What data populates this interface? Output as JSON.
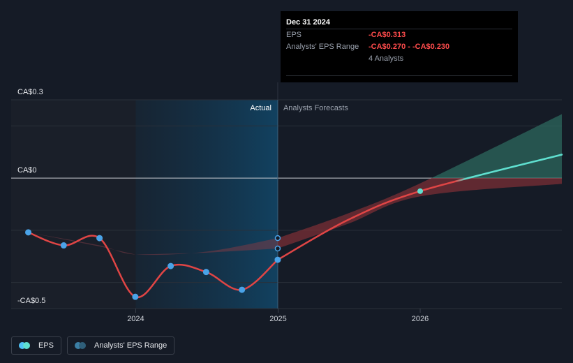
{
  "chart_data": {
    "type": "line",
    "y_unit_prefix": "CA$",
    "ylim": [
      -0.5,
      0.3
    ],
    "y_tick_labels": [
      {
        "value": 0.3,
        "label": "CA$0.3"
      },
      {
        "value": 0,
        "label": "CA$0"
      },
      {
        "value": -0.5,
        "label": "-CA$0.5"
      }
    ],
    "y_gridlines": [
      0.3,
      0.2,
      0,
      -0.2,
      -0.4,
      -0.5
    ],
    "xlim": [
      "2023-02-15",
      "2026-12-31"
    ],
    "x_tick_labels": [
      {
        "value": "2024-01-01",
        "label": "2024"
      },
      {
        "value": "2025-01-01",
        "label": "2025"
      },
      {
        "value": "2026-01-01",
        "label": "2026"
      }
    ],
    "regions": {
      "actual_label": "Actual",
      "forecast_label": "Analysts Forecasts",
      "highlight_start": "2024-01-01",
      "boundary": "2024-12-31"
    },
    "series": [
      {
        "name": "EPS",
        "color": "#e04545",
        "points": [
          {
            "x": "2023-03-31",
            "y": -0.208
          },
          {
            "x": "2023-06-30",
            "y": -0.258
          },
          {
            "x": "2023-09-30",
            "y": -0.23
          },
          {
            "x": "2023-12-31",
            "y": -0.455
          },
          {
            "x": "2024-03-31",
            "y": -0.337
          },
          {
            "x": "2024-06-30",
            "y": -0.36
          },
          {
            "x": "2024-09-30",
            "y": -0.428
          },
          {
            "x": "2024-12-31",
            "y": -0.313
          }
        ]
      },
      {
        "name": "EPS forecast",
        "color_start": "#e04545",
        "color_end": "#5fe0d0",
        "points": [
          {
            "x": "2024-12-31",
            "y": -0.313
          },
          {
            "x": "2025-06-30",
            "y": -0.16
          },
          {
            "x": "2026-01-01",
            "y": -0.05
          },
          {
            "x": "2026-12-31",
            "y": 0.09
          }
        ]
      }
    ],
    "analyst_markers": [
      {
        "x": "2024-12-31",
        "y": -0.23
      },
      {
        "x": "2024-12-31",
        "y": -0.27
      }
    ],
    "ranges": [
      {
        "name": "Historical EPS range",
        "color": "#7a3a45",
        "upper": [
          {
            "x": "2023-03-31",
            "y": -0.208
          },
          {
            "x": "2023-09-30",
            "y": -0.258
          },
          {
            "x": "2024-01-01",
            "y": -0.293
          },
          {
            "x": "2024-06-30",
            "y": -0.282
          },
          {
            "x": "2024-12-31",
            "y": -0.23
          }
        ],
        "lower": [
          {
            "x": "2024-12-31",
            "y": -0.27
          },
          {
            "x": "2024-06-30",
            "y": -0.286
          },
          {
            "x": "2024-01-01",
            "y": -0.293
          },
          {
            "x": "2023-09-30",
            "y": -0.262
          },
          {
            "x": "2023-03-31",
            "y": -0.208
          }
        ]
      },
      {
        "name": "Analysts' EPS Range",
        "color_negative": "#7a2f35",
        "color_positive": "#2f7366",
        "upper": [
          {
            "x": "2024-12-31",
            "y": -0.23
          },
          {
            "x": "2025-06-30",
            "y": -0.135
          },
          {
            "x": "2026-01-01",
            "y": -0.02
          },
          {
            "x": "2026-12-31",
            "y": 0.245
          }
        ],
        "lower": [
          {
            "x": "2026-12-31",
            "y": -0.022
          },
          {
            "x": "2026-01-01",
            "y": -0.07
          },
          {
            "x": "2025-06-30",
            "y": -0.175
          },
          {
            "x": "2024-12-31",
            "y": -0.27
          }
        ]
      }
    ],
    "legend": [
      {
        "label": "EPS",
        "color_a": "#4fc3f7",
        "color_b": "#5fe0d0"
      },
      {
        "label": "Analysts' EPS Range",
        "color_a": "#3b7fa5",
        "color_b": "#2f5f7a"
      }
    ]
  },
  "tooltip": {
    "date": "Dec 31 2024",
    "eps_label": "EPS",
    "eps_value": "-CA$0.313",
    "range_label": "Analysts' EPS Range",
    "range_value": "-CA$0.270 - -CA$0.230",
    "analysts_count": "4 Analysts"
  }
}
